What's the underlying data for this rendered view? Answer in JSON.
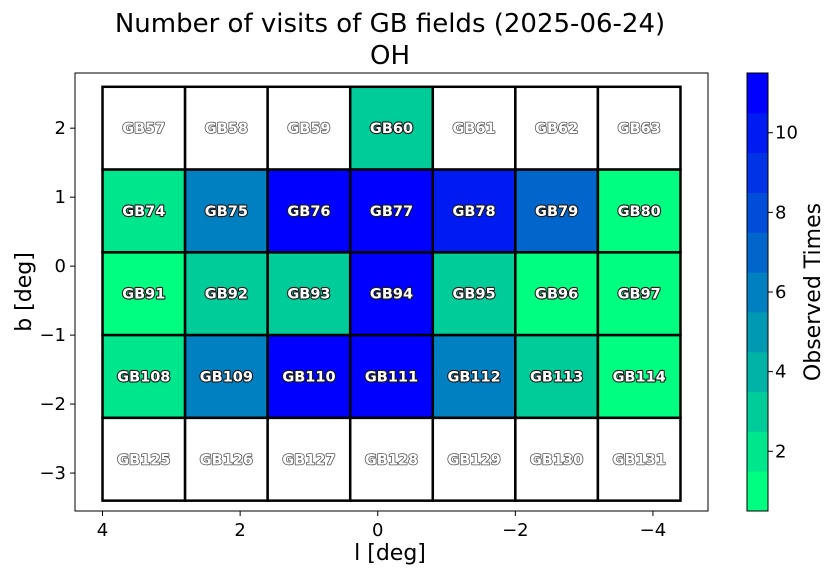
{
  "chart_data": {
    "type": "heatmap",
    "title": "Number of visits of GB fields (2025-06-24)",
    "subtitle": "OH",
    "xlabel": "l [deg]",
    "ylabel": "b [deg]",
    "xlim": [
      4.4,
      -4.8
    ],
    "ylim": [
      -3.55,
      2.8
    ],
    "x_ticks": [
      4,
      2,
      0,
      -2,
      -4
    ],
    "x_tick_labels": [
      "4",
      "2",
      "0",
      "−2",
      "−4"
    ],
    "y_ticks": [
      2,
      1,
      0,
      -1,
      -2,
      -3
    ],
    "y_tick_labels": [
      "2",
      "1",
      "0",
      "−1",
      "−2",
      "−3"
    ],
    "grid": false,
    "colorbar": {
      "label": "Observed Times",
      "range": [
        0.5,
        11.5
      ],
      "levels": 11,
      "ticks": [
        2,
        4,
        6,
        8,
        10
      ],
      "tick_labels": [
        "2",
        "4",
        "6",
        "8",
        "10"
      ],
      "color_low": "#00ff80",
      "color_high": "#0000ff"
    },
    "cell_edges": {
      "l": [
        4.0,
        2.8,
        1.6,
        0.4,
        -0.8,
        -2.0,
        -3.2,
        -4.4
      ],
      "b": [
        2.6,
        1.4,
        0.2,
        -1.0,
        -2.2,
        -3.4
      ]
    },
    "rows": [
      {
        "b": 2,
        "fields": [
          "GB57",
          "GB58",
          "GB59",
          "GB60",
          "GB61",
          "GB62",
          "GB63"
        ],
        "visits": [
          0,
          0,
          0,
          3,
          0,
          0,
          0
        ]
      },
      {
        "b": 1,
        "fields": [
          "GB74",
          "GB75",
          "GB76",
          "GB77",
          "GB78",
          "GB79",
          "GB80"
        ],
        "visits": [
          2,
          6,
          11,
          11,
          10,
          7,
          1
        ]
      },
      {
        "b": 0,
        "fields": [
          "GB91",
          "GB92",
          "GB93",
          "GB94",
          "GB95",
          "GB96",
          "GB97"
        ],
        "visits": [
          1,
          3,
          3,
          11,
          3,
          1,
          1
        ]
      },
      {
        "b": -1,
        "fields": [
          "GB108",
          "GB109",
          "GB110",
          "GB111",
          "GB112",
          "GB113",
          "GB114"
        ],
        "visits": [
          2,
          6,
          11,
          11,
          6,
          3,
          1
        ]
      },
      {
        "b": -2,
        "fields": [
          "GB125",
          "GB126",
          "GB127",
          "GB128",
          "GB129",
          "GB130",
          "GB131"
        ],
        "visits": [
          0,
          0,
          0,
          0,
          0,
          0,
          0
        ]
      }
    ]
  }
}
